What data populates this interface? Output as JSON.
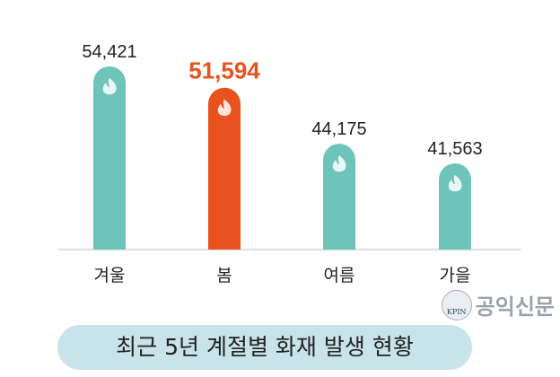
{
  "chart_data": {
    "type": "bar",
    "title": "최근 5년 계절별 화재 발생 현황",
    "categories": [
      "겨울",
      "봄",
      "여름",
      "가을"
    ],
    "values": [
      54421,
      51594,
      44175,
      41563
    ],
    "value_labels": [
      "54,421",
      "51,594",
      "44,175",
      "41,563"
    ],
    "highlight_index": 1,
    "xlabel": "",
    "ylabel": "",
    "ylim": [
      30135,
      54421
    ],
    "grid": false,
    "bar_icon": "fire-icon",
    "colors": {
      "bar": "#6fc4ba",
      "highlight": "#e8521f",
      "label": "#222222",
      "baseline": "#bbbbbb"
    }
  },
  "watermark": {
    "logo_text": "KPIN",
    "text": "공익신문"
  }
}
